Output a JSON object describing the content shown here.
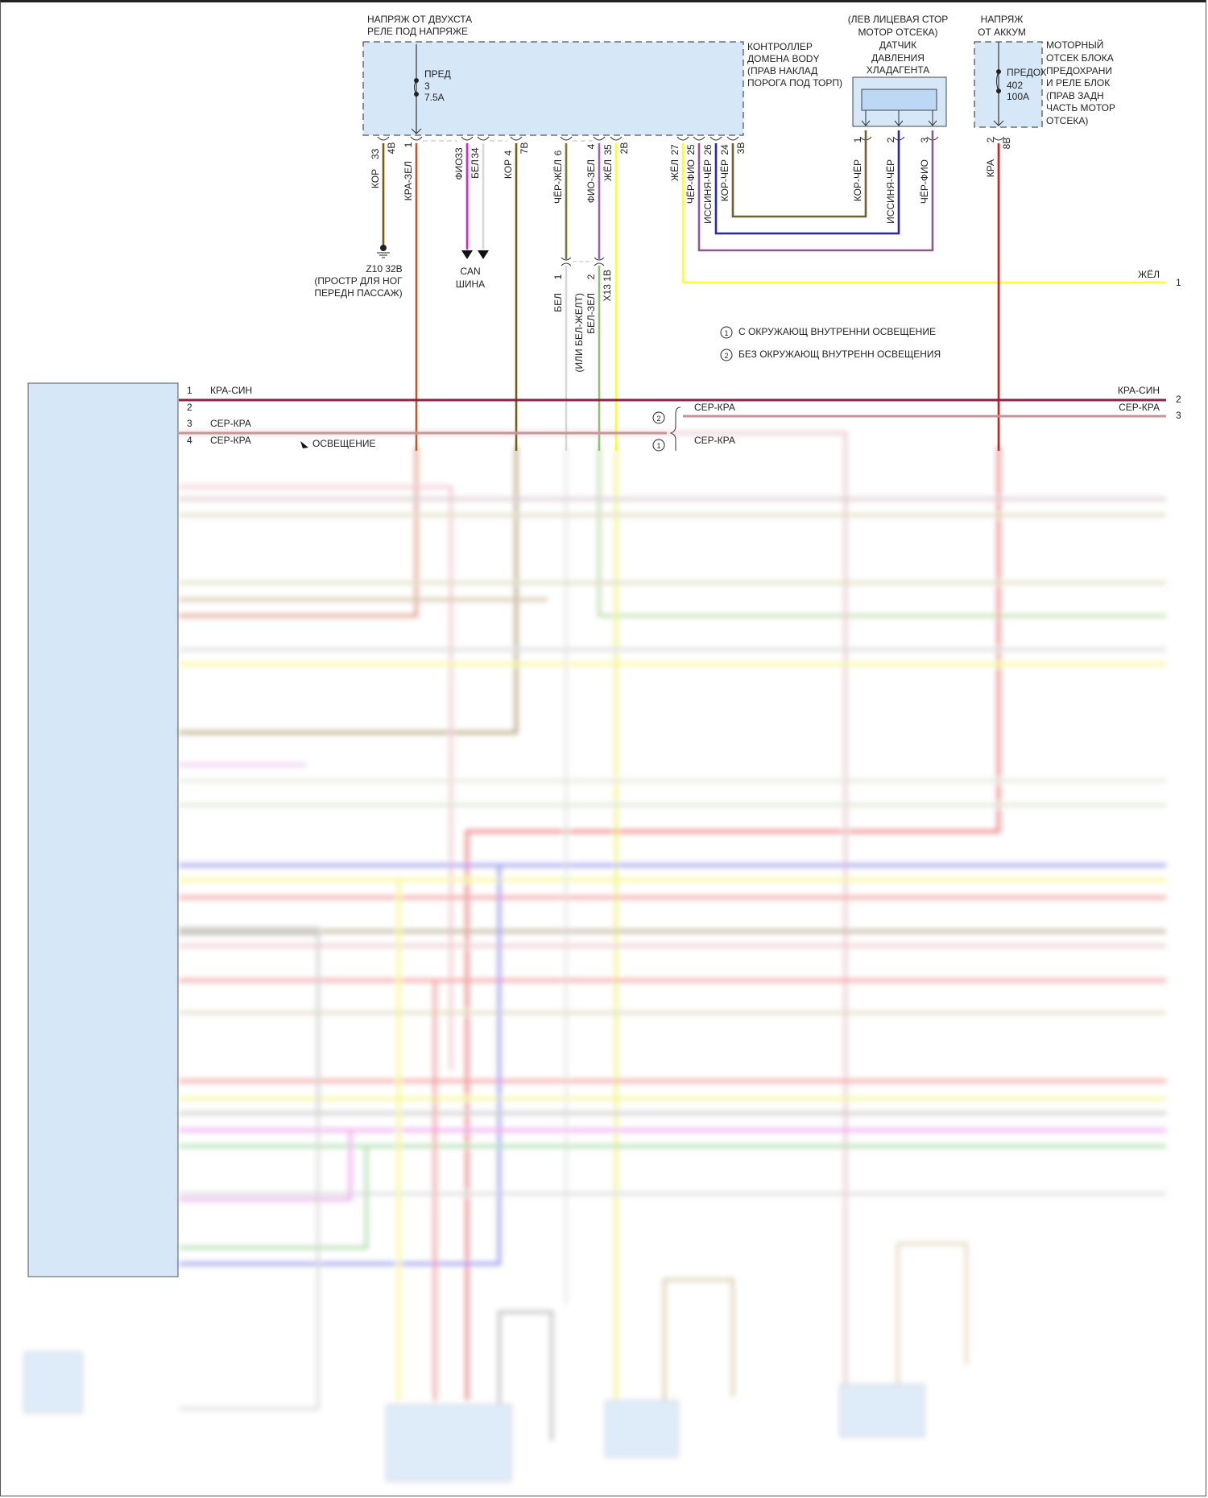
{
  "top": {
    "relay_supply": [
      "НАПРЯЖ ОТ ДВУХСТА",
      "РЕЛЕ ПОД НАПРЯЖЕ"
    ],
    "fuse3": {
      "name": "ПРЕД",
      "number": "3",
      "rating": "7.5A"
    },
    "body_controller": [
      "КОНТРОЛЛЕР",
      "ДОМЕНА BODY",
      "(ПРАВ НАКЛАД",
      "ПОРОГА ПОД ТОРП)"
    ],
    "sensor_location": [
      "(ЛЕВ ЛИЦЕВАЯ СТОР",
      "МОТОР ОТСЕКА)"
    ],
    "sensor_name": [
      "ДАТЧИК",
      "ДАВЛЕНИЯ",
      "ХЛАДАГЕНТА"
    ],
    "battery_supply": [
      "НАПРЯЖ",
      "ОТ АККУМ"
    ],
    "fuse402": {
      "name": "ПРЕДОХ",
      "number": "402",
      "rating": "100A"
    },
    "engine_fuse_box": [
      "МОТОРНЫЙ",
      "ОТСЕК БЛОКА",
      "ПРЕДОХРАНИ",
      "И РЕЛЕ БЛОК",
      "(ПРАВ ЗАДН",
      "ЧАСТЬ МОТОР",
      "ОТСЕКА)"
    ],
    "ground": [
      "Z10 32B",
      "(ПРОСТР ДЛЯ НОГ",
      "ПЕРЕДН ПАССАЖ)"
    ],
    "can_bus": [
      "CAN",
      "ШИНА"
    ]
  },
  "wires": [
    {
      "pin": "33",
      "conn": "4B",
      "color": "КОР"
    },
    {
      "pin": "1",
      "color": "КРА-ЗЕЛ"
    },
    {
      "pin": "33",
      "color": "ФИО"
    },
    {
      "pin": "34",
      "color": "БЕЛ"
    },
    {
      "pin": "4",
      "conn": "7B",
      "color": "КОР"
    },
    {
      "pin": "6",
      "color": "ЧЁР-ЖЁЛ"
    },
    {
      "pin": "4",
      "color": "ФИО-ЗЕЛ"
    },
    {
      "pin": "35",
      "conn": "2B",
      "color": "ЖЁЛ"
    },
    {
      "pin": "27",
      "color": "ЖЁЛ"
    },
    {
      "pin": "25",
      "color": "ЧЁР-ФИО"
    },
    {
      "pin": "26",
      "color": "ИССИНЯ-ЧЁР"
    },
    {
      "pin": "24",
      "conn": "3B",
      "color": "КОР-ЧЁР"
    },
    {
      "pin": "1",
      "color": "КОР-ЧЁР"
    },
    {
      "pin": "2",
      "color": "ИССИНЯ-ЧЁР"
    },
    {
      "pin": "3",
      "color": "ЧЁР-ФИО"
    },
    {
      "pin": "2",
      "conn": "8B",
      "color": "КРА"
    }
  ],
  "x13": {
    "pin1": "1",
    "pin2": "2",
    "conn": "X13 1B",
    "wire1": "БЕЛ",
    "wire1_alt": "(ИЛИ БЕЛ-ЖЕЛТ)",
    "wire2": "БЕЛ-ЗЕЛ"
  },
  "right_out": {
    "yellow_label": "ЖЁЛ",
    "yellow_pin": "1",
    "kra_sin_label": "КРА-СИН",
    "kra_sin_pin": "2",
    "ser_kra_label": "СЕР-КРА",
    "ser_kra_pin": "3"
  },
  "legend": [
    {
      "mark": "1",
      "text": "С ОКРУЖАЮЩ ВНУТРЕННИ ОСВЕЩЕНИЕ"
    },
    {
      "mark": "2",
      "text": "БЕЗ ОКРУЖАЮЩ ВНУТРЕНН ОСВЕЩЕНИЯ"
    }
  ],
  "left_module": {
    "pins": [
      "1",
      "2",
      "3",
      "4"
    ],
    "wire1": "КРА-СИН",
    "wire3": "СЕР-КРА",
    "wire4": "СЕР-КРА",
    "lighting": "ОСВЕЩЕНИЕ",
    "variant2_wire": "СЕР-КРА",
    "variant1_wire": "СЕР-КРА"
  },
  "colors": {
    "module_fill": "#d6e8f8",
    "kra": "#e01818",
    "kra_zel": "#c4522a",
    "kor": "#7a5a12",
    "fio": "#e020e0",
    "bel": "#d8d8d8",
    "zhel": "#ffff22",
    "issinya": "#2828a0",
    "chyor_fio": "#8a5a90",
    "kra_sin": "#8a2444",
    "ser_kra": "#c29494"
  }
}
